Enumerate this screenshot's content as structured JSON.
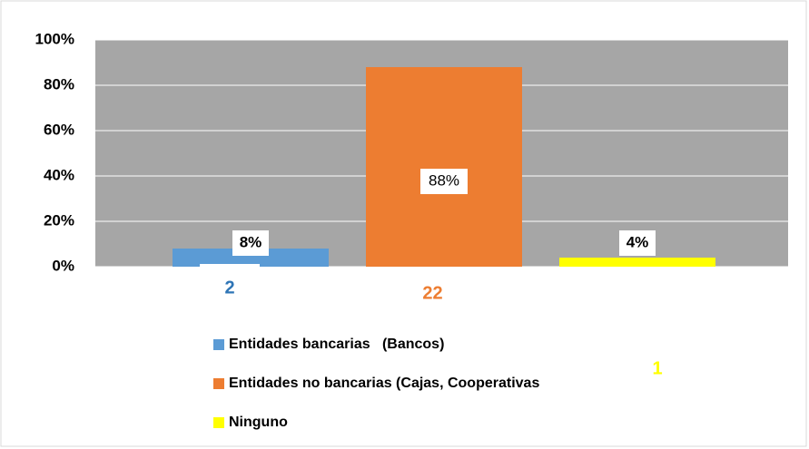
{
  "chart_data": {
    "type": "bar",
    "ylim": [
      0,
      100
    ],
    "yticks": [
      {
        "value": 0,
        "label": "0%"
      },
      {
        "value": 20,
        "label": "20%"
      },
      {
        "value": 40,
        "label": "40%"
      },
      {
        "value": 60,
        "label": "60%"
      },
      {
        "value": 80,
        "label": "80%"
      },
      {
        "value": 100,
        "label": "100%"
      }
    ],
    "grid": true,
    "series": [
      {
        "name": "Entidades bancarias   (Bancos)",
        "color": "#5b9bd5",
        "values": [
          8
        ],
        "value_labels": [
          "8%"
        ],
        "count": 2
      },
      {
        "name": "Entidades no bancarias (Cajas, Cooperativas",
        "color": "#ed7d31",
        "values": [
          88
        ],
        "value_labels": [
          "88%"
        ],
        "count": 22
      },
      {
        "name": "Ninguno",
        "color": "#ffff00",
        "values": [
          4
        ],
        "value_labels": [
          "4%"
        ],
        "count": 1
      }
    ]
  }
}
